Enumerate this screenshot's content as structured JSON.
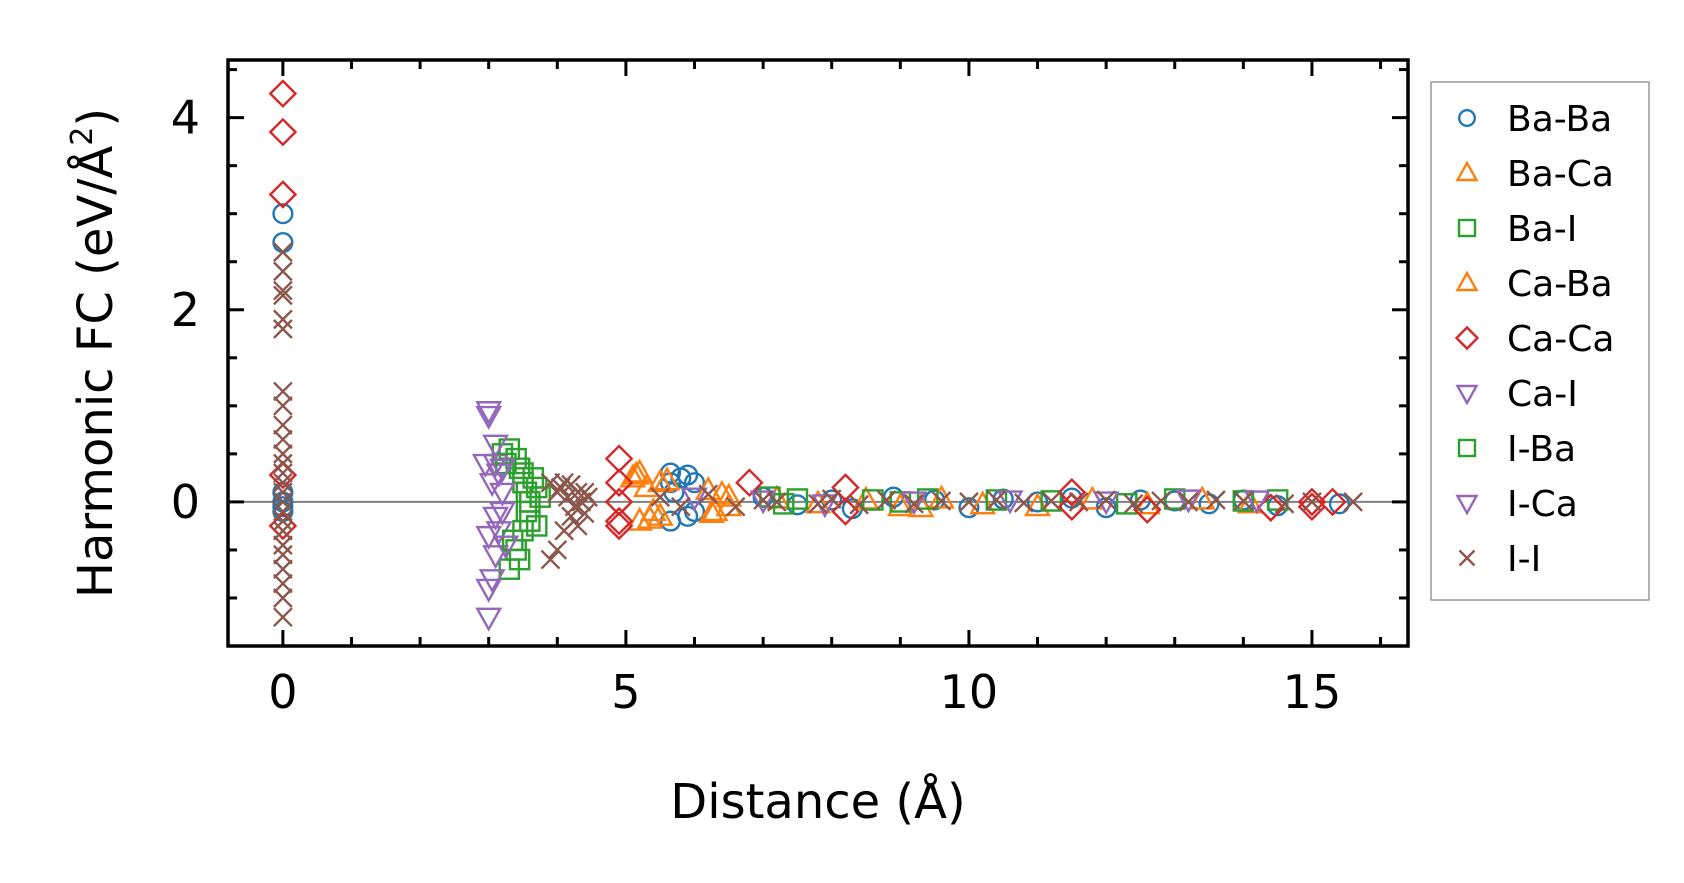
{
  "chart_data": {
    "type": "scatter",
    "title": "",
    "xlabel": "Distance (Å)",
    "ylabel": "Harmonic FC (eV/Å²)",
    "ylabel_main": "Harmonic FC (eV/Å",
    "ylabel_sup": "2",
    "ylabel_close": ")",
    "xlim": [
      -0.8,
      16.4
    ],
    "ylim": [
      -1.5,
      4.6
    ],
    "x_ticks": [
      0,
      5,
      10,
      15
    ],
    "x_tick_labels": [
      "0",
      "5",
      "10",
      "15"
    ],
    "y_ticks": [
      0,
      2,
      4
    ],
    "y_tick_labels": [
      "0",
      "2",
      "4"
    ],
    "x_minor_step": 1,
    "y_minor_step": 0.5,
    "zero_line": true,
    "legend_position": "right",
    "series": [
      {
        "name": "Ba-Ba",
        "marker": "circle",
        "color": "#1f77b4",
        "points": [
          [
            0,
            3.0
          ],
          [
            0,
            2.7
          ],
          [
            0,
            0.1
          ],
          [
            0,
            0.0
          ],
          [
            0,
            -0.05
          ],
          [
            0,
            -0.1
          ],
          [
            5.65,
            0.3
          ],
          [
            5.65,
            0.2
          ],
          [
            5.65,
            -0.2
          ],
          [
            5.7,
            0.1
          ],
          [
            5.8,
            0.25
          ],
          [
            5.9,
            0.28
          ],
          [
            5.9,
            -0.15
          ],
          [
            6.0,
            0.2
          ],
          [
            6.0,
            -0.1
          ],
          [
            7.0,
            0.05
          ],
          [
            7.5,
            -0.03
          ],
          [
            8.0,
            0.02
          ],
          [
            8.3,
            -0.07
          ],
          [
            8.9,
            0.05
          ],
          [
            9.5,
            0.02
          ],
          [
            10.0,
            -0.06
          ],
          [
            10.5,
            0.03
          ],
          [
            11.0,
            0.0
          ],
          [
            11.5,
            0.04
          ],
          [
            12.0,
            -0.06
          ],
          [
            12.5,
            0.02
          ],
          [
            13.0,
            0.01
          ],
          [
            13.5,
            -0.02
          ],
          [
            14.0,
            0.02
          ],
          [
            14.5,
            -0.04
          ],
          [
            15.4,
            -0.02
          ]
        ]
      },
      {
        "name": "Ba-Ca",
        "marker": "triangle-up",
        "color": "#ff7f0e",
        "points": [
          [
            5.1,
            0.25
          ],
          [
            5.2,
            0.3
          ],
          [
            5.2,
            -0.2
          ],
          [
            5.3,
            0.15
          ],
          [
            5.4,
            -0.1
          ],
          [
            5.5,
            0.2
          ],
          [
            5.5,
            -0.15
          ],
          [
            6.2,
            0.12
          ],
          [
            6.3,
            -0.1
          ],
          [
            6.5,
            0.05
          ],
          [
            6.5,
            -0.05
          ],
          [
            7.2,
            0.03
          ],
          [
            7.8,
            -0.02
          ],
          [
            8.5,
            0.02
          ],
          [
            9.0,
            -0.05
          ],
          [
            9.3,
            -0.06
          ],
          [
            9.6,
            0.03
          ],
          [
            10.2,
            -0.03
          ],
          [
            11.0,
            -0.05
          ],
          [
            11.8,
            0.02
          ],
          [
            12.6,
            -0.03
          ],
          [
            13.4,
            0.02
          ],
          [
            14.1,
            -0.02
          ]
        ]
      },
      {
        "name": "Ba-I",
        "marker": "square",
        "color": "#2ca02c",
        "points": [
          [
            3.2,
            0.5
          ],
          [
            3.3,
            0.55
          ],
          [
            3.3,
            -0.7
          ],
          [
            3.4,
            0.45
          ],
          [
            3.4,
            -0.5
          ],
          [
            3.45,
            0.35
          ],
          [
            3.5,
            0.3
          ],
          [
            3.5,
            -0.3
          ],
          [
            3.5,
            0.2
          ],
          [
            3.55,
            0.1
          ],
          [
            3.55,
            -0.1
          ],
          [
            3.6,
            0.0
          ],
          [
            3.6,
            -0.2
          ],
          [
            3.7,
            0.15
          ],
          [
            3.7,
            -0.25
          ],
          [
            7.1,
            0.05
          ],
          [
            7.3,
            -0.02
          ],
          [
            7.5,
            0.03
          ],
          [
            8.6,
            0.02
          ],
          [
            9.0,
            0.0
          ],
          [
            9.4,
            0.03
          ],
          [
            10.4,
            0.02
          ],
          [
            11.2,
            0.01
          ],
          [
            12.3,
            -0.02
          ],
          [
            13.0,
            0.03
          ],
          [
            14.0,
            0.01
          ],
          [
            14.5,
            0.02
          ]
        ]
      },
      {
        "name": "Ca-Ba",
        "marker": "triangle-up",
        "color": "#ff7f0e",
        "points": [
          [
            5.15,
            0.28
          ],
          [
            5.35,
            -0.18
          ],
          [
            5.6,
            0.22
          ],
          [
            6.25,
            -0.12
          ],
          [
            6.4,
            0.08
          ]
        ]
      },
      {
        "name": "Ca-Ca",
        "marker": "diamond",
        "color": "#d62728",
        "points": [
          [
            0,
            4.25
          ],
          [
            0,
            3.85
          ],
          [
            0,
            3.2
          ],
          [
            0,
            0.28
          ],
          [
            0,
            -0.25
          ],
          [
            4.9,
            0.45
          ],
          [
            4.9,
            0.2
          ],
          [
            4.9,
            -0.2
          ],
          [
            4.9,
            -0.25
          ],
          [
            4.9,
            0.0
          ],
          [
            6.8,
            0.2
          ],
          [
            8.2,
            0.15
          ],
          [
            8.2,
            -0.1
          ],
          [
            11.5,
            0.1
          ],
          [
            11.5,
            -0.05
          ],
          [
            12.6,
            -0.08
          ],
          [
            14.4,
            -0.06
          ],
          [
            15.0,
            0.0
          ],
          [
            15.0,
            -0.05
          ],
          [
            15.3,
            0.0
          ]
        ]
      },
      {
        "name": "Ca-I",
        "marker": "triangle-down",
        "color": "#9467bd",
        "points": [
          [
            3.0,
            0.95
          ],
          [
            3.0,
            0.9
          ],
          [
            3.0,
            -1.2
          ],
          [
            3.0,
            -0.9
          ],
          [
            3.05,
            -0.8
          ],
          [
            3.1,
            0.6
          ],
          [
            3.1,
            -0.55
          ],
          [
            3.1,
            0.4
          ],
          [
            3.15,
            0.3
          ],
          [
            3.15,
            -0.3
          ],
          [
            3.2,
            0.1
          ],
          [
            3.2,
            -0.1
          ],
          [
            6.0,
            0.05
          ],
          [
            7.0,
            0.02
          ],
          [
            7.9,
            -0.02
          ],
          [
            9.2,
            0.01
          ],
          [
            10.6,
            0.02
          ],
          [
            12.0,
            0.01
          ],
          [
            13.2,
            0.03
          ],
          [
            14.2,
            0.02
          ]
        ]
      },
      {
        "name": "I-Ba",
        "marker": "square",
        "color": "#2ca02c",
        "points": [
          [
            3.25,
            0.4
          ],
          [
            3.35,
            -0.4
          ],
          [
            3.45,
            -0.6
          ],
          [
            3.65,
            0.25
          ],
          [
            3.75,
            0.05
          ]
        ]
      },
      {
        "name": "I-Ca",
        "marker": "triangle-down",
        "color": "#9467bd",
        "points": [
          [
            2.95,
            0.4
          ],
          [
            3.0,
            -0.35
          ],
          [
            3.05,
            0.2
          ],
          [
            3.1,
            -0.15
          ],
          [
            3.2,
            0.35
          ],
          [
            3.25,
            -0.45
          ]
        ]
      },
      {
        "name": "I-I",
        "marker": "x",
        "color": "#8c564b",
        "points": [
          [
            0,
            2.6
          ],
          [
            0,
            2.4
          ],
          [
            0,
            2.2
          ],
          [
            0,
            2.15
          ],
          [
            0,
            1.9
          ],
          [
            0,
            1.8
          ],
          [
            0,
            1.15
          ],
          [
            0,
            1.0
          ],
          [
            0,
            0.8
          ],
          [
            0,
            0.65
          ],
          [
            0,
            0.5
          ],
          [
            0,
            0.4
          ],
          [
            0,
            0.3
          ],
          [
            0,
            0.2
          ],
          [
            0,
            0.1
          ],
          [
            0,
            0.0
          ],
          [
            0,
            -0.1
          ],
          [
            0,
            -0.2
          ],
          [
            0,
            -0.3
          ],
          [
            0,
            -0.45
          ],
          [
            0,
            -0.55
          ],
          [
            0,
            -0.7
          ],
          [
            0,
            -0.85
          ],
          [
            0,
            -1.0
          ],
          [
            0,
            -1.2
          ],
          [
            3.9,
            0.2
          ],
          [
            3.9,
            -0.6
          ],
          [
            4.0,
            0.1
          ],
          [
            4.0,
            -0.5
          ],
          [
            4.05,
            0.15
          ],
          [
            4.1,
            -0.3
          ],
          [
            4.1,
            0.2
          ],
          [
            4.15,
            0.05
          ],
          [
            4.2,
            -0.15
          ],
          [
            4.2,
            0.18
          ],
          [
            4.25,
            -0.05
          ],
          [
            4.3,
            0.1
          ],
          [
            4.3,
            -0.25
          ],
          [
            4.35,
            0.0
          ],
          [
            4.4,
            -0.12
          ],
          [
            4.4,
            0.1
          ],
          [
            4.45,
            0.05
          ],
          [
            5.5,
            0.05
          ],
          [
            5.8,
            -0.05
          ],
          [
            6.2,
            0.08
          ],
          [
            6.6,
            -0.05
          ],
          [
            7.0,
            0.02
          ],
          [
            7.2,
            0.0
          ],
          [
            7.8,
            -0.02
          ],
          [
            8.0,
            0.03
          ],
          [
            8.4,
            -0.03
          ],
          [
            8.8,
            0.02
          ],
          [
            9.2,
            -0.02
          ],
          [
            9.6,
            0.01
          ],
          [
            10.0,
            0.0
          ],
          [
            10.4,
            0.02
          ],
          [
            10.8,
            -0.01
          ],
          [
            11.2,
            0.01
          ],
          [
            11.6,
            0.0
          ],
          [
            12.0,
            0.02
          ],
          [
            12.4,
            -0.02
          ],
          [
            12.8,
            0.01
          ],
          [
            13.2,
            0.0
          ],
          [
            13.6,
            0.02
          ],
          [
            14.0,
            0.01
          ],
          [
            14.6,
            -0.02
          ],
          [
            15.0,
            0.0
          ],
          [
            15.6,
            0.0
          ]
        ]
      }
    ]
  }
}
